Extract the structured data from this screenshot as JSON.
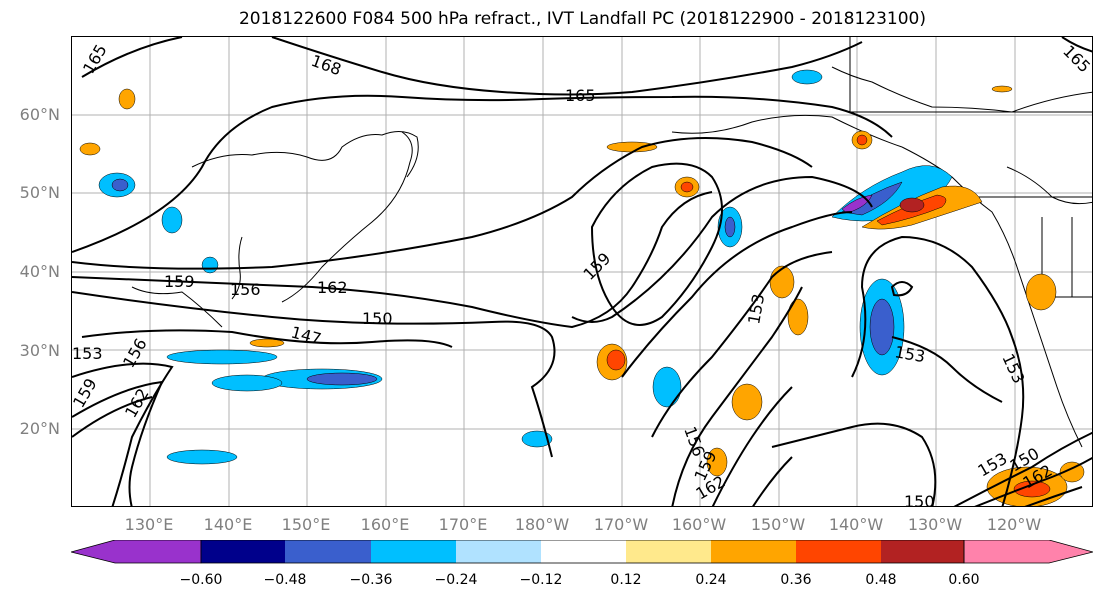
{
  "title": "2018122600 F084 500 hPa refract., IVT Landfall PC (2018122900 - 2018123100)",
  "latitude_labels": [
    "60°N",
    "50°N",
    "40°N",
    "30°N",
    "20°N"
  ],
  "longitude_labels": [
    "130°E",
    "140°E",
    "150°E",
    "160°E",
    "170°E",
    "180°W",
    "170°W",
    "160°W",
    "150°W",
    "140°W",
    "130°W",
    "120°W"
  ],
  "contour_labels": [
    "165",
    "168",
    "165",
    "159",
    "156",
    "162",
    "150",
    "147",
    "153",
    "156",
    "159",
    "162",
    "159",
    "153",
    "153",
    "153",
    "156",
    "159",
    "162",
    "150",
    "153",
    "150",
    "162",
    "165"
  ],
  "colorbar": {
    "tick_labels": [
      "−0.60",
      "−0.48",
      "−0.36",
      "−0.24",
      "−0.12",
      "0.12",
      "0.24",
      "0.36",
      "0.48",
      "0.60"
    ],
    "colors": [
      "#9932cc",
      "#00008b",
      "#3a5fcd",
      "#00bfff",
      "#b0e2ff",
      "#ffffff",
      "#ffe98c",
      "#ffa500",
      "#ff4500",
      "#b22222",
      "#ff82ab"
    ],
    "extend": "both"
  },
  "legend": "colorbar-bottom",
  "grid": true
}
